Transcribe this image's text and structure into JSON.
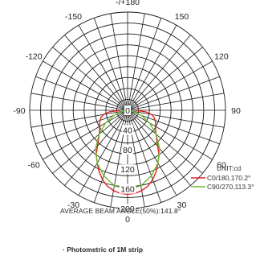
{
  "chart_data": {
    "type": "polar",
    "angle_labels": [
      {
        "text": "-/+180",
        "angle": 180
      },
      {
        "text": "150",
        "angle": 150
      },
      {
        "text": "120",
        "angle": 120
      },
      {
        "text": "90",
        "angle": 90
      },
      {
        "text": "60",
        "angle": 60
      },
      {
        "text": "30",
        "angle": 30
      },
      {
        "text": "0",
        "angle": 0
      },
      {
        "text": "-30",
        "angle": -30
      },
      {
        "text": "-60",
        "angle": -60
      },
      {
        "text": "-90",
        "angle": -90
      },
      {
        "text": "-120",
        "angle": -120
      },
      {
        "text": "-150",
        "angle": -150
      }
    ],
    "radial_ticks": [
      "0",
      "40",
      "80",
      "120",
      "160",
      "200"
    ],
    "radial_max": 200,
    "unit_label": "UNIT:cd",
    "grid": true,
    "legend_position": "bottom-right",
    "series": [
      {
        "name": "C0/180,170.2°",
        "color": "#e02020",
        "points": [
          [
            -90,
            16
          ],
          [
            -85,
            38
          ],
          [
            -80,
            50
          ],
          [
            -75,
            56
          ],
          [
            -70,
            60
          ],
          [
            -65,
            63
          ],
          [
            -60,
            66
          ],
          [
            -55,
            70
          ],
          [
            -50,
            76
          ],
          [
            -45,
            84
          ],
          [
            -40,
            96
          ],
          [
            -35,
            112
          ],
          [
            -30,
            124
          ],
          [
            -25,
            138
          ],
          [
            -20,
            150
          ],
          [
            -15,
            160
          ],
          [
            -10,
            166
          ],
          [
            -5,
            170
          ],
          [
            0,
            171
          ],
          [
            5,
            170
          ],
          [
            10,
            166
          ],
          [
            15,
            160
          ],
          [
            20,
            150
          ],
          [
            25,
            138
          ],
          [
            30,
            124
          ],
          [
            35,
            112
          ],
          [
            40,
            96
          ],
          [
            45,
            84
          ],
          [
            50,
            76
          ],
          [
            55,
            70
          ],
          [
            60,
            66
          ],
          [
            65,
            63
          ],
          [
            70,
            60
          ],
          [
            75,
            56
          ],
          [
            80,
            50
          ],
          [
            85,
            38
          ],
          [
            90,
            16
          ]
        ]
      },
      {
        "name": "C90/270,113.3°",
        "color": "#6cbf2a",
        "points": [
          [
            -90,
            0
          ],
          [
            -80,
            10
          ],
          [
            -70,
            30
          ],
          [
            -60,
            52
          ],
          [
            -50,
            76
          ],
          [
            -40,
            102
          ],
          [
            -30,
            124
          ],
          [
            -20,
            142
          ],
          [
            -10,
            156
          ],
          [
            0,
            162
          ],
          [
            10,
            156
          ],
          [
            20,
            142
          ],
          [
            30,
            124
          ],
          [
            40,
            102
          ],
          [
            50,
            76
          ],
          [
            60,
            52
          ],
          [
            70,
            30
          ],
          [
            80,
            10
          ],
          [
            90,
            0
          ]
        ]
      }
    ]
  },
  "captions": {
    "beam_angle": "AVERAGE BEAM ANGLE(50%):141.8°",
    "photometric": "· Photometric of 1M strip"
  }
}
